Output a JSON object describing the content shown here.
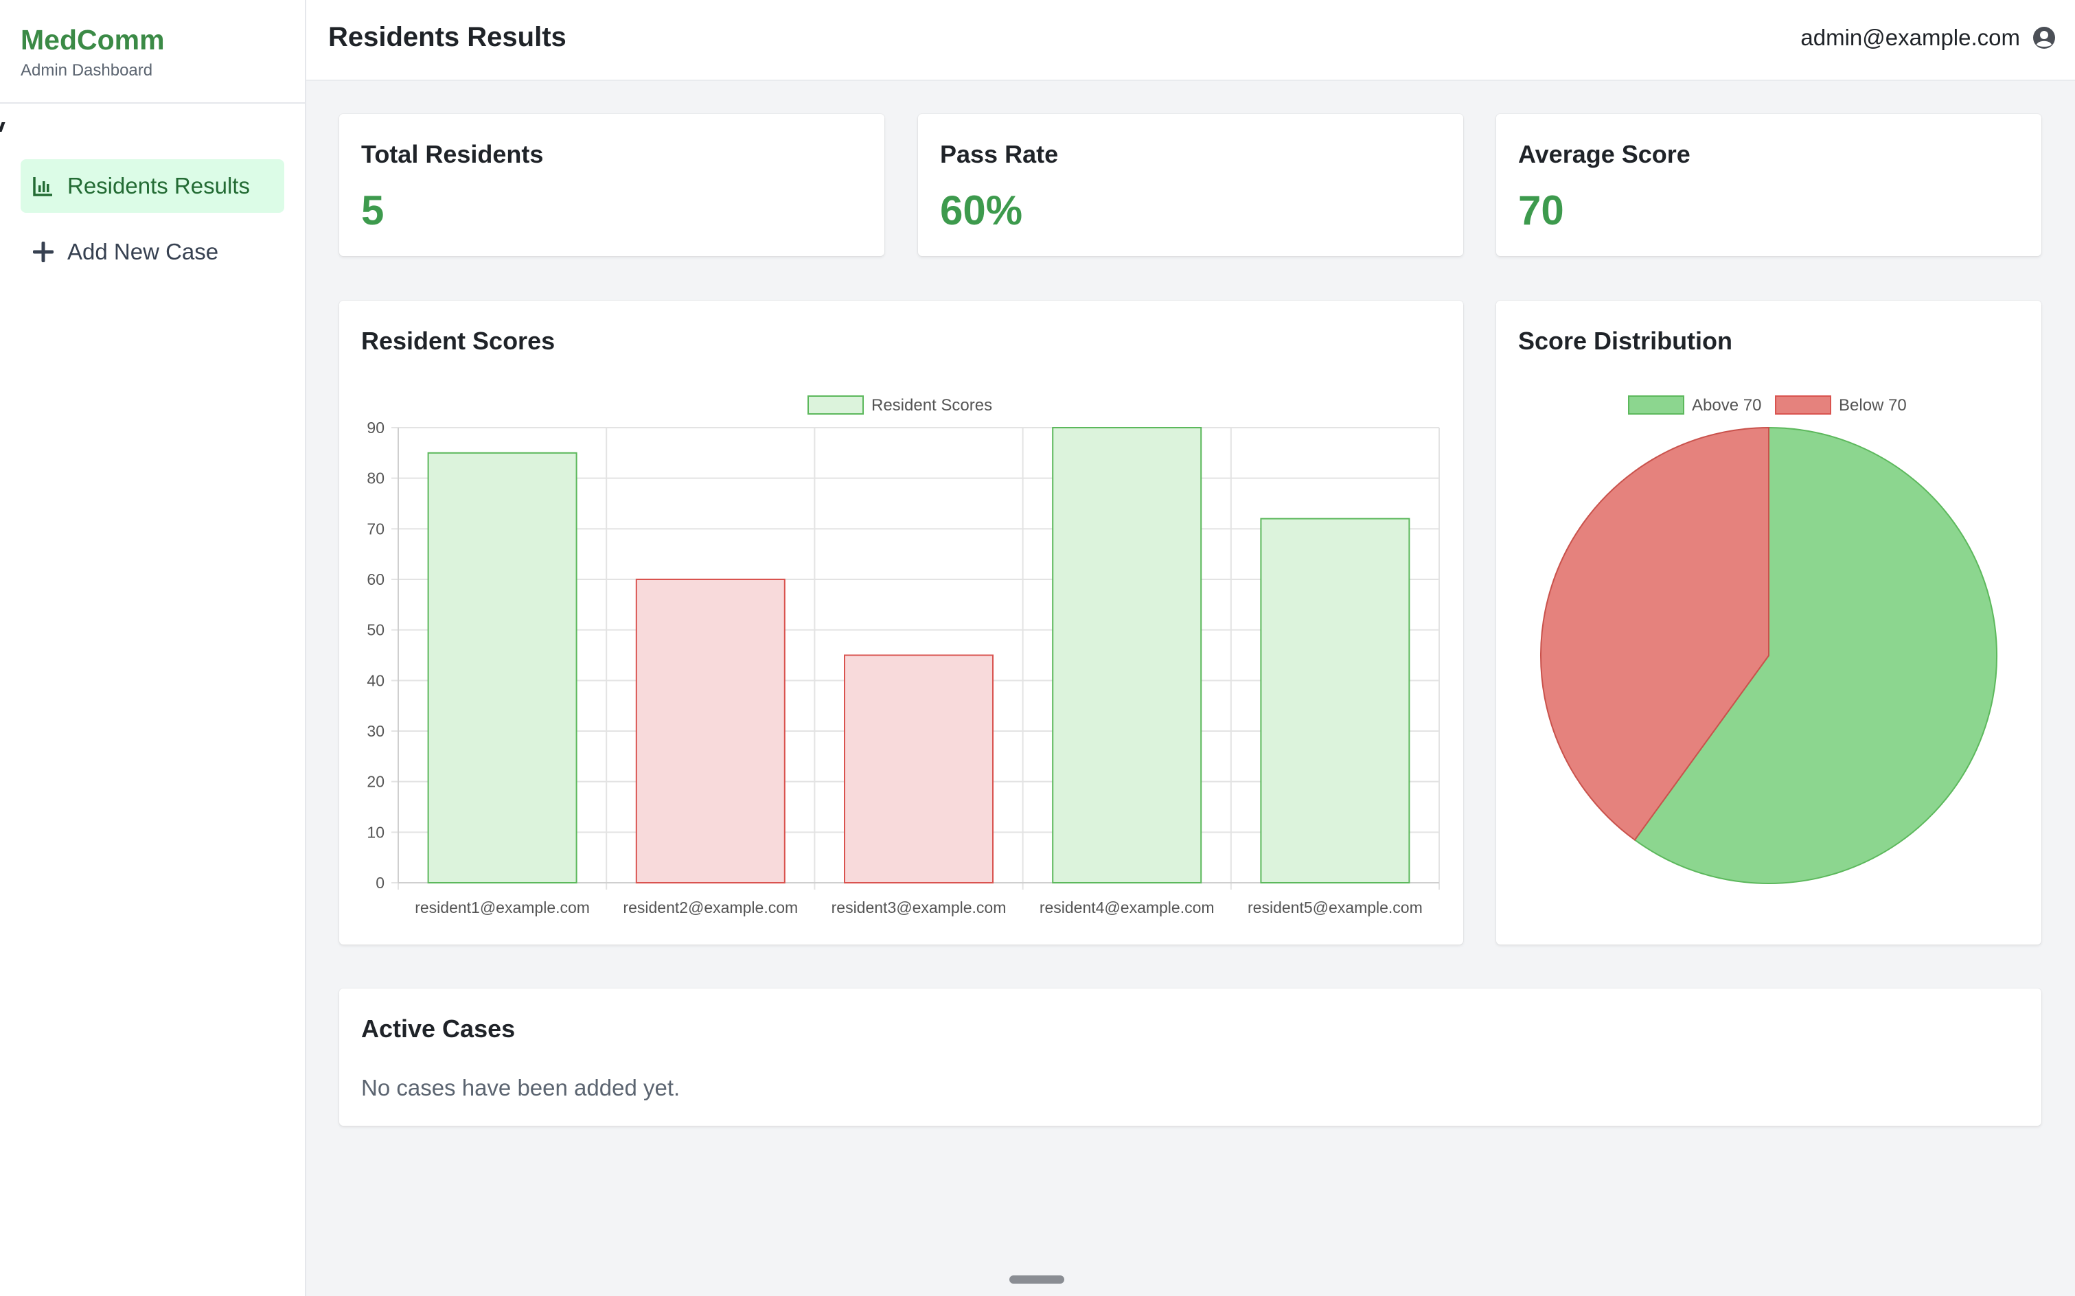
{
  "brand": {
    "title": "MedComm",
    "subtitle": "Admin Dashboard"
  },
  "sidebar": {
    "items": [
      {
        "label": "Residents Results",
        "icon": "bar-chart-icon",
        "active": true
      },
      {
        "label": "Add New Case",
        "icon": "plus-icon",
        "active": false
      }
    ]
  },
  "header": {
    "title": "Residents Results",
    "user_email": "admin@example.com",
    "user_icon": "user-circle-icon"
  },
  "stats": [
    {
      "label": "Total Residents",
      "value": "5"
    },
    {
      "label": "Pass Rate",
      "value": "60%"
    },
    {
      "label": "Average Score",
      "value": "70"
    }
  ],
  "bar_card": {
    "title": "Resident Scores"
  },
  "pie_card": {
    "title": "Score Distribution"
  },
  "cases": {
    "title": "Active Cases",
    "empty_text": "No cases have been added yet."
  },
  "colors": {
    "brand": "#3b8a46",
    "accent_value": "#3d9a4d",
    "green_fill_light": "#dcf3dc",
    "green_stroke": "#5cb85c",
    "red_fill_light": "#f8dadb",
    "red_stroke": "#d9534f",
    "pie_green": "#8cd68f",
    "pie_red": "#e5827d"
  },
  "chart_data": [
    {
      "type": "bar",
      "title": "",
      "categories": [
        "resident1@example.com",
        "resident2@example.com",
        "resident3@example.com",
        "resident4@example.com",
        "resident5@example.com"
      ],
      "series": [
        {
          "name": "Resident Scores",
          "values": [
            85,
            60,
            45,
            90,
            72
          ]
        }
      ],
      "bar_colors": [
        "green",
        "red",
        "red",
        "green",
        "green"
      ],
      "ylim": [
        0,
        90
      ],
      "yticks": [
        0,
        10,
        20,
        30,
        40,
        50,
        60,
        70,
        80,
        90
      ],
      "grid": true,
      "legend_position": "top"
    },
    {
      "type": "pie",
      "title": "",
      "labels": [
        "Above 70",
        "Below 70"
      ],
      "values": [
        3,
        2
      ],
      "colors": [
        "#8cd68f",
        "#e5827d"
      ],
      "legend_position": "top"
    }
  ]
}
